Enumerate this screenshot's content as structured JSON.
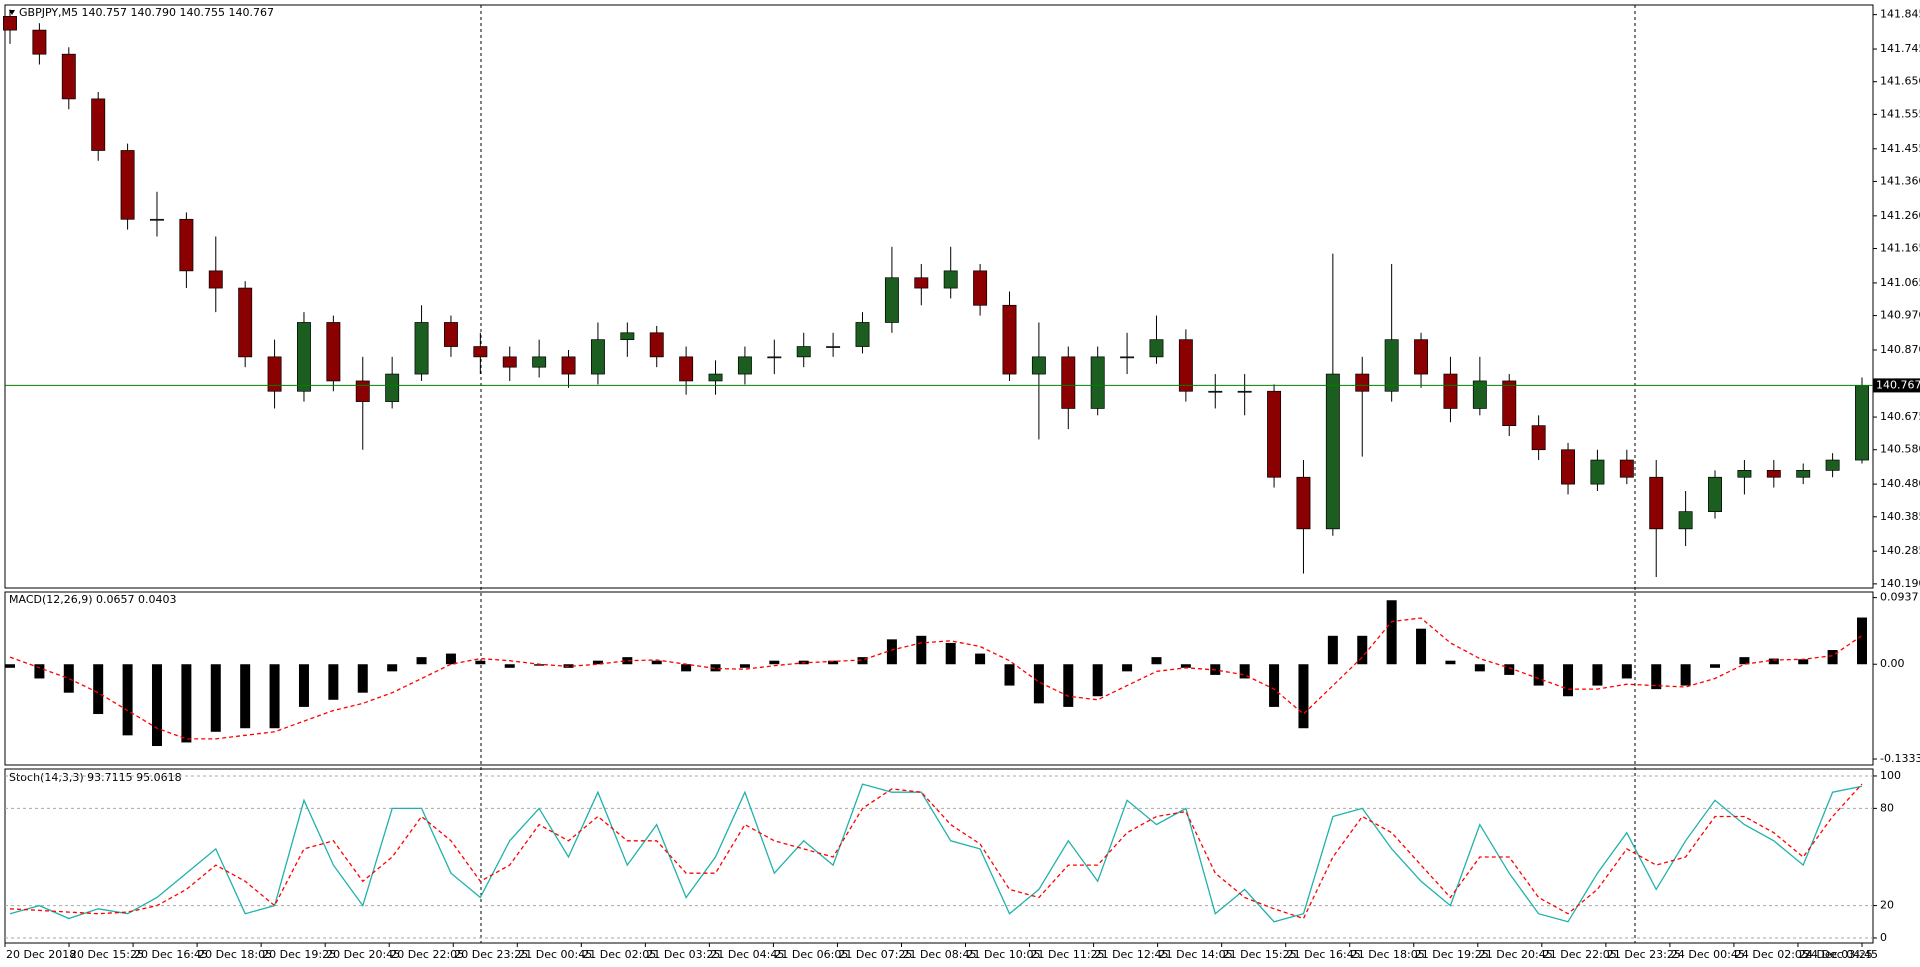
{
  "time_labels": [
    "20 Dec 2018",
    "20 Dec 15:25",
    "20 Dec 16:45",
    "20 Dec 18:05",
    "20 Dec 19:25",
    "20 Dec 20:45",
    "20 Dec 22:05",
    "20 Dec 23:25",
    "21 Dec 00:45",
    "21 Dec 02:05",
    "21 Dec 03:25",
    "21 Dec 04:45",
    "21 Dec 06:05",
    "21 Dec 07:25",
    "21 Dec 08:45",
    "21 Dec 10:05",
    "21 Dec 11:25",
    "21 Dec 12:45",
    "21 Dec 14:05",
    "21 Dec 15:25",
    "21 Dec 16:45",
    "21 Dec 18:05",
    "21 Dec 19:25",
    "21 Dec 20:45",
    "21 Dec 22:05",
    "21 Dec 23:25",
    "24 Dec 00:45",
    "24 Dec 02:05",
    "24 Dec 03:25",
    "24 Dec 04:45"
  ],
  "chart_data": [
    {
      "type": "candlestick",
      "title": "GBPJPY,M5  140.757 140.790 140.755 140.767",
      "up_color": "#1b5e20",
      "down_color": "#8b0000",
      "wick_color": "#000000",
      "price_line_color": "#008000",
      "ylim": [
        140.178,
        141.873
      ],
      "yticks": [
        141.845,
        141.745,
        {
          "value": 141.65,
          "label": "141.650"
        },
        141.555,
        141.455,
        {
          "value": 141.36,
          "label": "141.360"
        },
        {
          "value": 141.26,
          "label": "141.260"
        },
        141.165,
        141.065,
        {
          "value": 140.97,
          "label": "140.970"
        },
        {
          "value": 140.87,
          "label": "140.870"
        },
        140.675,
        {
          "value": 140.58,
          "label": "140.580"
        },
        {
          "value": 140.48,
          "label": "140.480"
        },
        140.385,
        140.285,
        {
          "value": 140.19,
          "label": "140.190"
        }
      ],
      "open": [
        141.84,
        141.8,
        141.73,
        141.6,
        141.45,
        141.25,
        141.25,
        141.1,
        141.05,
        140.85,
        140.75,
        140.95,
        140.78,
        140.72,
        140.8,
        140.95,
        140.88,
        140.85,
        140.82,
        140.85,
        140.8,
        140.9,
        140.92,
        140.85,
        140.78,
        140.8,
        140.85,
        140.85,
        140.88,
        140.88,
        140.95,
        141.08,
        141.05,
        141.1,
        141.0,
        140.8,
        140.85,
        140.7,
        140.85,
        140.85,
        140.9,
        140.75,
        140.75,
        140.75,
        140.5,
        140.35,
        140.8,
        140.75,
        140.9,
        140.8,
        140.7,
        140.78,
        140.65,
        140.58,
        140.48,
        140.55,
        140.5,
        140.35,
        140.4,
        140.5,
        140.52,
        140.5,
        140.52,
        140.55
      ],
      "high": [
        141.86,
        141.82,
        141.75,
        141.62,
        141.47,
        141.33,
        141.27,
        141.2,
        141.07,
        140.9,
        140.98,
        140.97,
        140.85,
        140.85,
        141.0,
        140.97,
        140.92,
        140.88,
        140.9,
        140.87,
        140.95,
        140.95,
        140.94,
        140.88,
        140.84,
        140.88,
        140.9,
        140.92,
        140.92,
        140.98,
        141.17,
        141.12,
        141.17,
        141.12,
        141.04,
        140.95,
        140.88,
        140.88,
        140.92,
        140.97,
        140.93,
        140.8,
        140.8,
        140.77,
        140.55,
        141.15,
        140.85,
        141.12,
        140.92,
        140.85,
        140.85,
        140.8,
        140.68,
        140.6,
        140.58,
        140.58,
        140.55,
        140.46,
        140.52,
        140.55,
        140.55,
        140.54,
        140.57,
        140.79
      ],
      "low": [
        141.76,
        141.7,
        141.57,
        141.42,
        141.22,
        141.2,
        141.05,
        140.98,
        140.82,
        140.7,
        140.72,
        140.75,
        140.58,
        140.7,
        140.78,
        140.85,
        140.8,
        140.78,
        140.79,
        140.76,
        140.77,
        140.85,
        140.82,
        140.74,
        140.74,
        140.77,
        140.8,
        140.82,
        140.85,
        140.86,
        140.92,
        141.0,
        141.02,
        140.97,
        140.78,
        140.61,
        140.64,
        140.68,
        140.8,
        140.83,
        140.72,
        140.7,
        140.68,
        140.47,
        140.22,
        140.33,
        140.56,
        140.72,
        140.76,
        140.66,
        140.68,
        140.62,
        140.55,
        140.45,
        140.46,
        140.48,
        140.21,
        140.3,
        140.38,
        140.45,
        140.47,
        140.48,
        140.5,
        140.54
      ],
      "close": [
        141.8,
        141.73,
        141.6,
        141.45,
        141.25,
        141.25,
        141.1,
        141.05,
        140.85,
        140.75,
        140.95,
        140.78,
        140.72,
        140.8,
        140.95,
        140.88,
        140.85,
        140.82,
        140.85,
        140.8,
        140.9,
        140.92,
        140.85,
        140.78,
        140.8,
        140.85,
        140.85,
        140.88,
        140.88,
        140.95,
        141.08,
        141.05,
        141.1,
        141.0,
        140.8,
        140.85,
        140.7,
        140.85,
        140.85,
        140.9,
        140.75,
        140.75,
        140.75,
        140.5,
        140.35,
        140.8,
        140.75,
        140.9,
        140.8,
        140.7,
        140.78,
        140.65,
        140.58,
        140.48,
        140.55,
        140.5,
        140.35,
        140.4,
        140.5,
        140.52,
        140.5,
        140.52,
        140.55,
        140.767
      ]
    },
    {
      "type": "bar",
      "title": "MACD(12,26,9) 0.0657 0.0403",
      "ylim": [
        -0.1417,
        0.1016
      ],
      "yticks": [
        0.0937,
        {
          "value": 0,
          "label": "0.00"
        },
        -0.1333
      ],
      "series": [
        {
          "color": "#000000",
          "style": "bar",
          "values": [
            -0.005,
            -0.02,
            -0.04,
            -0.07,
            -0.1,
            -0.115,
            -0.11,
            -0.095,
            -0.09,
            -0.09,
            -0.06,
            -0.05,
            -0.04,
            -0.01,
            0.01,
            0.015,
            0.005,
            -0.005,
            -0.002,
            -0.005,
            0.005,
            0.01,
            0.005,
            -0.01,
            -0.01,
            -0.005,
            0.005,
            0.005,
            0.005,
            0.01,
            0.035,
            0.04,
            0.03,
            0.015,
            -0.03,
            -0.055,
            -0.06,
            -0.045,
            -0.01,
            0.01,
            -0.005,
            -0.015,
            -0.02,
            -0.06,
            -0.09,
            0.04,
            0.04,
            0.09,
            0.05,
            0.005,
            -0.01,
            -0.015,
            -0.03,
            -0.045,
            -0.03,
            -0.02,
            -0.035,
            -0.03,
            -0.005,
            0.01,
            0.008,
            0.007,
            0.02,
            0.0657
          ]
        },
        {
          "color": "#ff0000",
          "style": "dashed",
          "values": [
            0.01,
            -0.005,
            -0.02,
            -0.04,
            -0.065,
            -0.09,
            -0.105,
            -0.105,
            -0.1,
            -0.095,
            -0.08,
            -0.065,
            -0.055,
            -0.04,
            -0.02,
            0,
            0.008,
            0.005,
            0,
            -0.003,
            0,
            0.005,
            0.006,
            0,
            -0.006,
            -0.007,
            -0.002,
            0.002,
            0.004,
            0.006,
            0.02,
            0.03,
            0.033,
            0.025,
            0.005,
            -0.025,
            -0.045,
            -0.05,
            -0.03,
            -0.01,
            -0.005,
            -0.008,
            -0.015,
            -0.035,
            -0.07,
            -0.03,
            0.01,
            0.06,
            0.065,
            0.03,
            0.008,
            -0.005,
            -0.02,
            -0.035,
            -0.035,
            -0.028,
            -0.03,
            -0.032,
            -0.02,
            0,
            0.006,
            0.007,
            0.012,
            0.0403
          ]
        }
      ]
    },
    {
      "type": "line",
      "title": "Stoch(14,3,3) 93.7115 95.0618",
      "ylim": [
        -3.1,
        104.3
      ],
      "yticks": [
        0,
        20,
        80,
        100
      ],
      "grid": true,
      "series": [
        {
          "color": "#20b2aa",
          "style": "solid",
          "values": [
            15,
            20,
            12,
            18,
            15,
            25,
            40,
            55,
            15,
            20,
            85,
            45,
            20,
            80,
            80,
            40,
            25,
            60,
            80,
            50,
            90,
            45,
            70,
            25,
            50,
            90,
            40,
            60,
            45,
            95,
            90,
            90,
            60,
            55,
            15,
            30,
            60,
            35,
            85,
            70,
            80,
            15,
            30,
            10,
            15,
            75,
            80,
            55,
            35,
            20,
            70,
            40,
            15,
            10,
            40,
            65,
            30,
            60,
            85,
            70,
            60,
            45,
            90,
            93.7115
          ]
        },
        {
          "color": "#ff0000",
          "style": "dashed",
          "values": [
            18,
            17,
            16,
            15,
            16,
            20,
            30,
            45,
            35,
            20,
            55,
            60,
            35,
            50,
            75,
            60,
            35,
            45,
            70,
            60,
            75,
            60,
            60,
            40,
            40,
            70,
            60,
            55,
            50,
            80,
            92,
            90,
            70,
            58,
            30,
            25,
            45,
            45,
            65,
            75,
            78,
            40,
            25,
            18,
            12,
            50,
            75,
            65,
            45,
            25,
            50,
            50,
            25,
            15,
            30,
            55,
            45,
            50,
            75,
            75,
            65,
            50,
            75,
            95.0618
          ]
        }
      ]
    }
  ]
}
